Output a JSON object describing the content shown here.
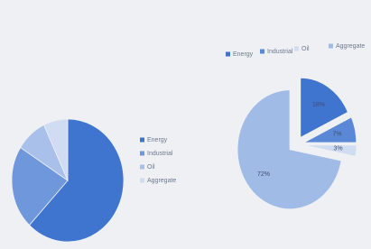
{
  "chart_data": [
    {
      "type": "pie",
      "legend": "right",
      "categories": [
        "Energy",
        "Industrial",
        "Oil",
        "Aggregate"
      ],
      "values": [
        62,
        22,
        9,
        7
      ],
      "colors": [
        "#3f74cf",
        "#6f98dc",
        "#a9c1ea",
        "#cfdcf2"
      ]
    },
    {
      "type": "pie",
      "legend": "top",
      "categories": [
        "Energy",
        "Industrial",
        "Oil",
        "Aggregate"
      ],
      "values": [
        18,
        7,
        3,
        72
      ],
      "value_labels": [
        "18%",
        "7%",
        "3%",
        "72%"
      ],
      "colors": [
        "#3f74cf",
        "#5a88d6",
        "#cfdcf2",
        "#9fbbe6"
      ]
    }
  ]
}
